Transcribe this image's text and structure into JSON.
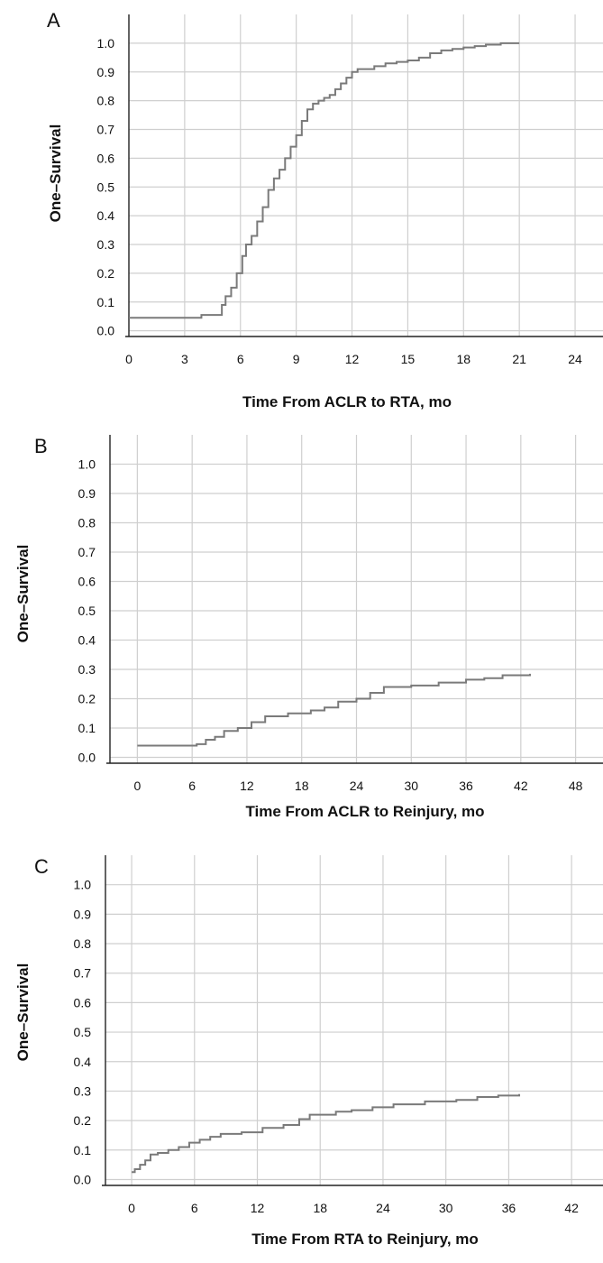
{
  "chart_data": [
    {
      "panel": "A",
      "type": "line",
      "xlabel": "Time From ACLR to RTA, mo",
      "ylabel": "One–Survival",
      "xlim": [
        0,
        25.5
      ],
      "ylim": [
        -0.02,
        1.1
      ],
      "xticks": [
        0,
        3,
        6,
        9,
        12,
        15,
        18,
        21,
        24
      ],
      "yticks": [
        0.0,
        0.1,
        0.2,
        0.3,
        0.4,
        0.5,
        0.6,
        0.7,
        0.8,
        0.9,
        1.0
      ],
      "ytick_labels": [
        "0.0",
        "0.1",
        "0.2",
        "0.3",
        "0.4",
        "0.5",
        "0.6",
        "0.7",
        "0.8",
        "0.9",
        "1.0"
      ],
      "grid": true,
      "series": [
        {
          "step": true,
          "x": [
            0,
            3.9,
            5.0,
            5.2,
            5.5,
            5.8,
            6.1,
            6.3,
            6.6,
            6.9,
            7.2,
            7.5,
            7.8,
            8.1,
            8.4,
            8.7,
            9.0,
            9.3,
            9.6,
            9.9,
            10.2,
            10.5,
            10.8,
            11.1,
            11.4,
            11.7,
            12.0,
            12.3,
            12.7,
            13.2,
            13.8,
            14.4,
            15.0,
            15.6,
            16.2,
            16.8,
            17.4,
            18.0,
            18.6,
            19.2,
            20.0,
            21.0
          ],
          "y": [
            0.045,
            0.055,
            0.09,
            0.12,
            0.15,
            0.2,
            0.26,
            0.3,
            0.33,
            0.38,
            0.43,
            0.49,
            0.53,
            0.56,
            0.6,
            0.64,
            0.68,
            0.73,
            0.77,
            0.79,
            0.8,
            0.81,
            0.82,
            0.84,
            0.86,
            0.88,
            0.9,
            0.91,
            0.91,
            0.92,
            0.93,
            0.935,
            0.94,
            0.95,
            0.965,
            0.975,
            0.98,
            0.985,
            0.99,
            0.995,
            1.0,
            1.0
          ]
        }
      ]
    },
    {
      "panel": "B",
      "type": "line",
      "xlabel": "Time From ACLR to Reinjury, mo",
      "ylabel": "One–Survival",
      "xlim": [
        -3,
        51
      ],
      "ylim": [
        -0.02,
        1.1
      ],
      "xticks": [
        0,
        6,
        12,
        18,
        24,
        30,
        36,
        42,
        48
      ],
      "yticks": [
        0.0,
        0.1,
        0.2,
        0.3,
        0.4,
        0.5,
        0.6,
        0.7,
        0.8,
        0.9,
        1.0
      ],
      "ytick_labels": [
        "0.0",
        "0.1",
        "0.2",
        "0.3",
        "0.4",
        "0.5",
        "0.6",
        "0.7",
        "0.8",
        "0.9",
        "1.0"
      ],
      "grid": true,
      "series": [
        {
          "step": true,
          "x": [
            0,
            6.5,
            7.5,
            8.5,
            9.5,
            11,
            12.5,
            14,
            16.5,
            19,
            20.5,
            22,
            24,
            25.5,
            27,
            30,
            33,
            36,
            38,
            40,
            43
          ],
          "y": [
            0.04,
            0.045,
            0.06,
            0.07,
            0.09,
            0.1,
            0.12,
            0.14,
            0.15,
            0.16,
            0.17,
            0.19,
            0.2,
            0.22,
            0.24,
            0.245,
            0.255,
            0.265,
            0.27,
            0.28,
            0.285
          ]
        }
      ]
    },
    {
      "panel": "C",
      "type": "line",
      "xlabel": "Time From RTA to Reinjury, mo",
      "ylabel": "One–Survival",
      "xlim": [
        -2.5,
        45
      ],
      "ylim": [
        -0.02,
        1.1
      ],
      "xticks": [
        0,
        6,
        12,
        18,
        24,
        30,
        36,
        42
      ],
      "yticks": [
        0.0,
        0.1,
        0.2,
        0.3,
        0.4,
        0.5,
        0.6,
        0.7,
        0.8,
        0.9,
        1.0
      ],
      "ytick_labels": [
        "0.0",
        "0.1",
        "0.2",
        "0.3",
        "0.4",
        "0.5",
        "0.6",
        "0.7",
        "0.8",
        "0.9",
        "1.0"
      ],
      "grid": true,
      "series": [
        {
          "step": true,
          "x": [
            0,
            0.3,
            0.8,
            1.3,
            1.8,
            2.5,
            3.5,
            4.5,
            5.5,
            6.5,
            7.5,
            8.5,
            10.5,
            12.5,
            14.5,
            16,
            17,
            19.5,
            21,
            23,
            25,
            28,
            31,
            33,
            35,
            37
          ],
          "y": [
            0.025,
            0.035,
            0.05,
            0.065,
            0.085,
            0.09,
            0.1,
            0.11,
            0.125,
            0.135,
            0.145,
            0.155,
            0.16,
            0.175,
            0.185,
            0.205,
            0.22,
            0.23,
            0.235,
            0.245,
            0.255,
            0.265,
            0.27,
            0.28,
            0.285,
            0.29
          ]
        }
      ]
    }
  ],
  "panels": {
    "a": {
      "letter": "A"
    },
    "b": {
      "letter": "B"
    },
    "c": {
      "letter": "C"
    }
  }
}
